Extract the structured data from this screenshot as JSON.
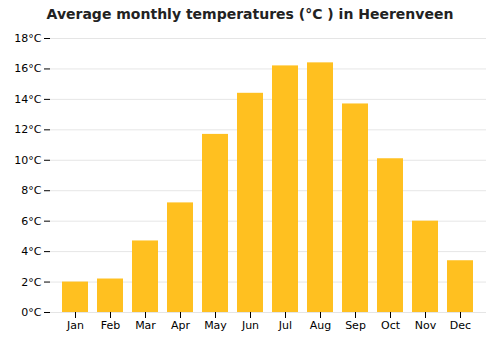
{
  "chart_data": {
    "type": "bar",
    "title": "Average monthly temperatures (°C ) in Heerenveen",
    "categories": [
      "Jan",
      "Feb",
      "Mar",
      "Apr",
      "May",
      "Jun",
      "Jul",
      "Aug",
      "Sep",
      "Oct",
      "Nov",
      "Dec"
    ],
    "values": [
      2.0,
      2.2,
      4.7,
      7.2,
      11.7,
      14.4,
      16.2,
      16.4,
      13.7,
      10.1,
      6.0,
      3.4
    ],
    "color": "#FFC020",
    "ylim": [
      0,
      18
    ],
    "yticks": [
      {
        "value": 0,
        "label": "0°C"
      },
      {
        "value": 2,
        "label": "2°C"
      },
      {
        "value": 4,
        "label": "4°C"
      },
      {
        "value": 6,
        "label": "6°C"
      },
      {
        "value": 8,
        "label": "8°C"
      },
      {
        "value": 10,
        "label": "10°C"
      },
      {
        "value": 12,
        "label": "12°C"
      },
      {
        "value": 14,
        "label": "14°C"
      },
      {
        "value": 16,
        "label": "16°C"
      },
      {
        "value": 18,
        "label": "18°C"
      }
    ],
    "grid": true
  }
}
